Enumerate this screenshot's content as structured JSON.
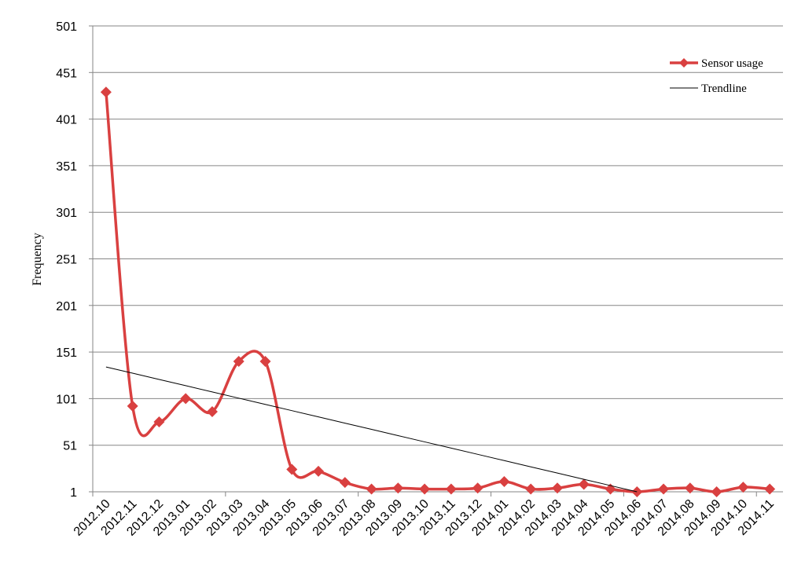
{
  "chart_data": {
    "type": "line",
    "y_label": "Frequency",
    "categories": [
      "2012.10",
      "2012.11",
      "2012.12",
      "2013.01",
      "2013.02",
      "2013.03",
      "2013.04",
      "2013.05",
      "2013.06",
      "2013.07",
      "2013.08",
      "2013.09",
      "2013.10",
      "2013.11",
      "2013.12",
      "2014.01",
      "2014.02",
      "2014.03",
      "2014.04",
      "2014.05",
      "2014.06",
      "2014.07",
      "2014.08",
      "2014.09",
      "2014.10",
      "2014.11"
    ],
    "series": [
      {
        "name": "Sensor usage",
        "color": "#d94040",
        "smooth": true,
        "marker": "diamond",
        "values": [
          430,
          93,
          76,
          101,
          87,
          141,
          141,
          25,
          23,
          11,
          4,
          5,
          4,
          4,
          5,
          12,
          4,
          5,
          9,
          4,
          1,
          4,
          5,
          1,
          6,
          4
        ]
      },
      {
        "name": "Trendline",
        "color": "#000000",
        "smooth": false,
        "marker": null,
        "values": [
          135,
          128.3,
          121.6,
          114.9,
          108.2,
          101.5,
          94.8,
          88.1,
          81.4,
          74.7,
          68,
          61.3,
          54.6,
          47.9,
          41.2,
          34.5,
          27.8,
          21.1,
          14.4,
          7.7,
          1,
          null,
          null,
          null,
          null,
          null
        ]
      }
    ],
    "ylim": [
      1,
      501
    ],
    "yticks": [
      1,
      51,
      101,
      151,
      201,
      251,
      301,
      351,
      401,
      451,
      501
    ],
    "grid": true,
    "legend": "top-right"
  }
}
